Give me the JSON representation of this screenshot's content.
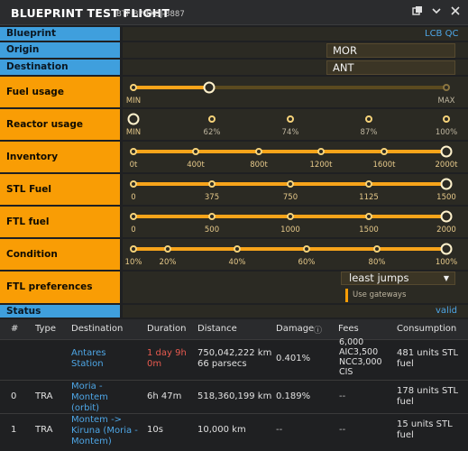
{
  "window": {
    "title": "BLUEPRINT TEST FLIGHT",
    "subtitle": "BTF BP-TXOJ-3887",
    "icons": [
      "popout-icon",
      "chevron-down-icon",
      "close-icon"
    ]
  },
  "blueprint": {
    "label": "Blueprint",
    "value": "LCB QC"
  },
  "origin": {
    "label": "Origin",
    "value": "MOR"
  },
  "destination": {
    "label": "Destination",
    "value": "ANT"
  },
  "fuel_usage": {
    "label": "Fuel usage",
    "min": "MIN",
    "max": "MAX",
    "level": 0.27
  },
  "reactor_usage": {
    "label": "Reactor usage",
    "ticks": [
      "MIN",
      "62%",
      "74%",
      "87%",
      "100%"
    ],
    "selected": 0
  },
  "inventory": {
    "label": "Inventory",
    "ticks": [
      "0t",
      "400t",
      "800t",
      "1200t",
      "1600t",
      "2000t"
    ],
    "selected": 5
  },
  "stl_fuel": {
    "label": "STL Fuel",
    "ticks": [
      "0",
      "375",
      "750",
      "1125",
      "1500"
    ],
    "selected": 4
  },
  "ftl_fuel": {
    "label": "FTL fuel",
    "ticks": [
      "0",
      "500",
      "1000",
      "1500",
      "2000"
    ],
    "selected": 4
  },
  "condition": {
    "label": "Condition",
    "ticks": [
      "10%",
      "20%",
      "40%",
      "60%",
      "80%",
      "100%"
    ],
    "selected": 5
  },
  "ftl_preferences": {
    "label": "FTL preferences",
    "selected": "least jumps",
    "gateways_label": "Use gateways"
  },
  "status": {
    "label": "Status",
    "value": "valid"
  },
  "table": {
    "headers": [
      "#",
      "Type",
      "Destination",
      "Duration",
      "Distance",
      "Damage",
      "Fees",
      "Consumption"
    ],
    "damage_info_icon": "info-icon",
    "summary": {
      "destination_line1": "Antares",
      "destination_line2": "Station",
      "duration_line1": "1 day 9h",
      "duration_line2": "0m",
      "distance_line1": "750,042,222 km",
      "distance_line2": "66 parsecs",
      "damage": "0.401%",
      "fees": [
        "6,000",
        "AIC3,500",
        "NCC3,000",
        "CIS"
      ],
      "consumption_line1": "481 units STL",
      "consumption_line2": "fuel"
    },
    "rows": [
      {
        "num": "0",
        "type": "TRA",
        "destination_line1": "Moria -",
        "destination_line2": "Montem",
        "destination_line3": "(orbit)",
        "duration": "6h 47m",
        "distance": "518,360,199 km",
        "damage": "0.189%",
        "fees": "--",
        "consumption_line1": "178 units STL",
        "consumption_line2": "fuel"
      },
      {
        "num": "1",
        "type": "TRA",
        "destination_line1": "Montem ->",
        "destination_line2": "Kiruna (Moria -",
        "destination_line3": "Montem)",
        "duration": "10s",
        "distance": "10,000 km",
        "damage": "--",
        "fees": "--",
        "consumption_line1": "15 units STL",
        "consumption_line2": "fuel"
      }
    ]
  }
}
